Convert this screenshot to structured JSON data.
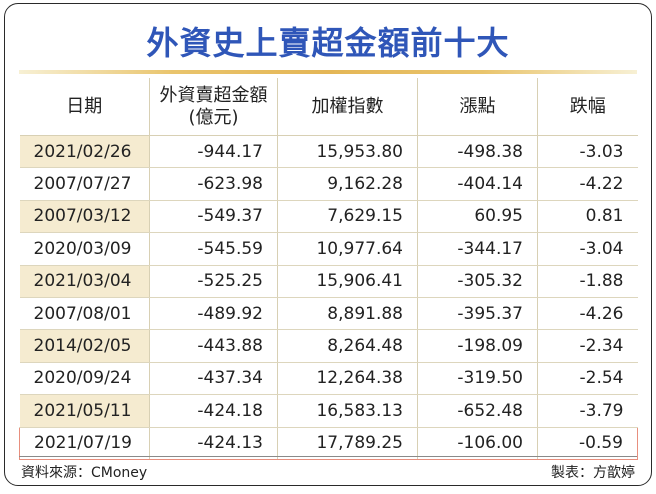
{
  "title": "外資史上賣超金額前十大",
  "table": {
    "headers": {
      "date": "日期",
      "amount_line1": "外資賣超金額",
      "amount_line2": "(億元)",
      "index": "加權指數",
      "change": "漲點",
      "pct": "跌幅"
    },
    "rows": [
      {
        "date": "2021/02/26",
        "amount": "-944.17",
        "index": "15,953.80",
        "change": "-498.38",
        "pct": "-3.03"
      },
      {
        "date": "2007/07/27",
        "amount": "-623.98",
        "index": "9,162.28",
        "change": "-404.14",
        "pct": "-4.22"
      },
      {
        "date": "2007/03/12",
        "amount": "-549.37",
        "index": "7,629.15",
        "change": "60.95",
        "pct": "0.81"
      },
      {
        "date": "2020/03/09",
        "amount": "-545.59",
        "index": "10,977.64",
        "change": "-344.17",
        "pct": "-3.04"
      },
      {
        "date": "2021/03/04",
        "amount": "-525.25",
        "index": "15,906.41",
        "change": "-305.32",
        "pct": "-1.88"
      },
      {
        "date": "2007/08/01",
        "amount": "-489.92",
        "index": "8,891.88",
        "change": "-395.37",
        "pct": "-4.26"
      },
      {
        "date": "2014/02/05",
        "amount": "-443.88",
        "index": "8,264.48",
        "change": "-198.09",
        "pct": "-2.34"
      },
      {
        "date": "2020/09/24",
        "amount": "-437.34",
        "index": "12,264.38",
        "change": "-319.50",
        "pct": "-2.54"
      },
      {
        "date": "2021/05/11",
        "amount": "-424.18",
        "index": "16,583.13",
        "change": "-652.48",
        "pct": "-3.79"
      },
      {
        "date": "2021/07/19",
        "amount": "-424.13",
        "index": "17,789.25",
        "change": "-106.00",
        "pct": "-0.59"
      }
    ]
  },
  "footer": {
    "source": "資料來源：CMoney",
    "credit": "製表：方歆婷"
  },
  "colors": {
    "title": "#2f56b8",
    "date_shading": "#f5ebd0",
    "highlight_border": "#e88f7e",
    "gold_rule": "#e4b656"
  }
}
